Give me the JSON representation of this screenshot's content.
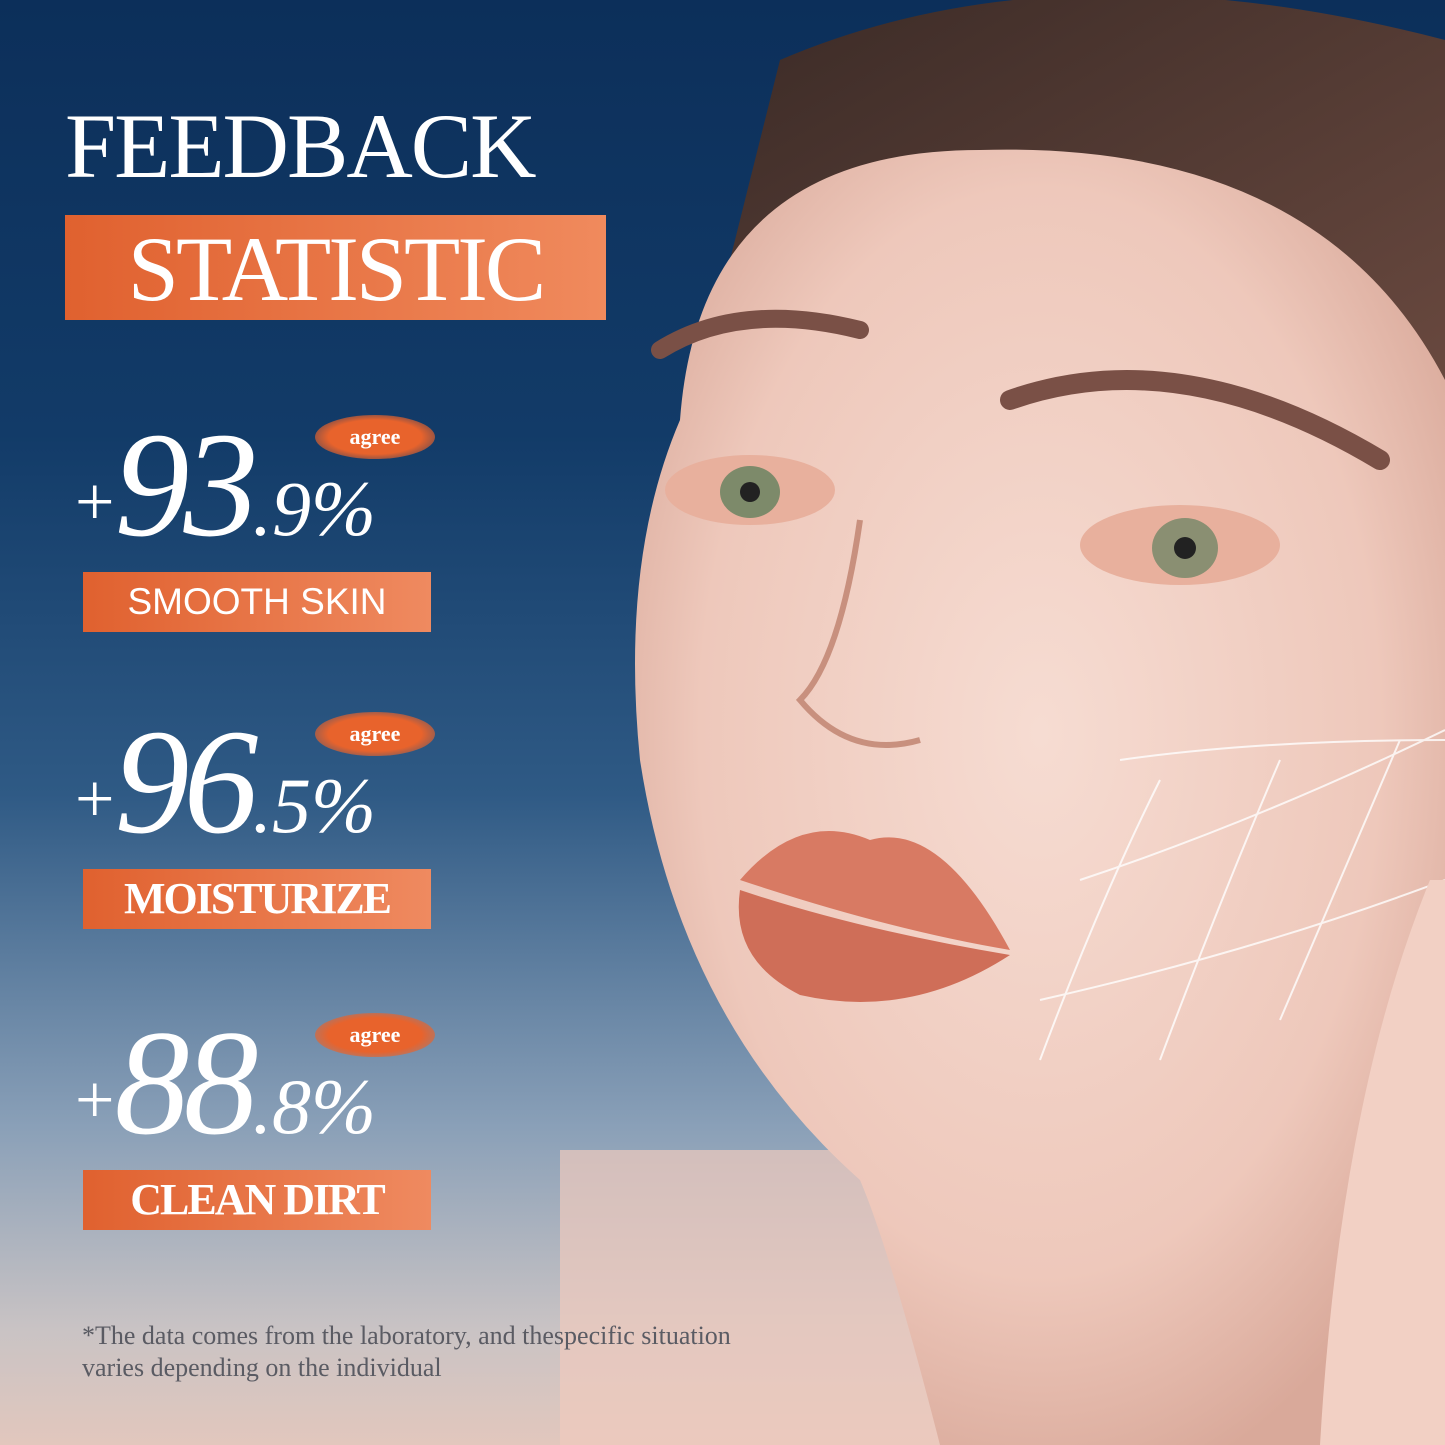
{
  "header": {
    "title": "FEEDBACK",
    "subtitle": "STATISTIC"
  },
  "stats": [
    {
      "plus": "+",
      "whole": "93",
      "decimal": ".9%",
      "badge": "agree",
      "label": "SMOOTH SKIN",
      "value": 93.9
    },
    {
      "plus": "+",
      "whole": "96",
      "decimal": ".5%",
      "badge": "agree",
      "label": "MOISTURIZE",
      "value": 96.5
    },
    {
      "plus": "+",
      "whole": "88",
      "decimal": ".8%",
      "badge": "agree",
      "label": "CLEAN DIRT",
      "value": 88.8
    }
  ],
  "footnote": "*The data comes from the laboratory, and thespecific situation varies depending on the individual",
  "colors": {
    "accent": "#e8673a",
    "background_top": "#0c2f5a",
    "text": "#ffffff"
  }
}
